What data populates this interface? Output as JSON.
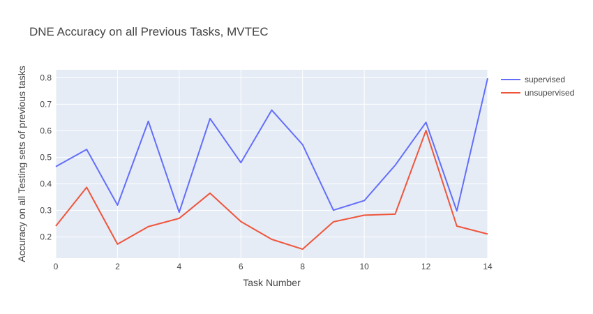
{
  "chart_data": {
    "type": "line",
    "title": "DNE Accuracy on all Previous Tasks, MVTEC",
    "xlabel": "Task Number",
    "ylabel": "Accuracy on all Testing sets of previous tasks",
    "xlim": [
      0,
      14
    ],
    "ylim": [
      0.12,
      0.83
    ],
    "xticks": [
      "0",
      "2",
      "4",
      "6",
      "8",
      "10",
      "12",
      "14"
    ],
    "yticks": [
      "0.2",
      "0.3",
      "0.4",
      "0.5",
      "0.6",
      "0.7",
      "0.8"
    ],
    "grid": true,
    "legend_position": "top-right",
    "x": [
      0,
      1,
      2,
      3,
      4,
      5,
      6,
      7,
      8,
      9,
      10,
      11,
      12,
      13,
      14
    ],
    "series": [
      {
        "name": "supervised",
        "color": "#636efa",
        "values": [
          0.465,
          0.53,
          0.32,
          0.636,
          0.293,
          0.646,
          0.48,
          0.678,
          0.548,
          0.301,
          0.337,
          0.47,
          0.632,
          0.298,
          0.798
        ]
      },
      {
        "name": "unsupervised",
        "color": "#ef553b",
        "values": [
          0.241,
          0.387,
          0.173,
          0.239,
          0.27,
          0.365,
          0.258,
          0.191,
          0.154,
          0.257,
          0.282,
          0.286,
          0.601,
          0.241,
          0.211
        ]
      }
    ],
    "plot_bg": "#e5ecf6"
  }
}
